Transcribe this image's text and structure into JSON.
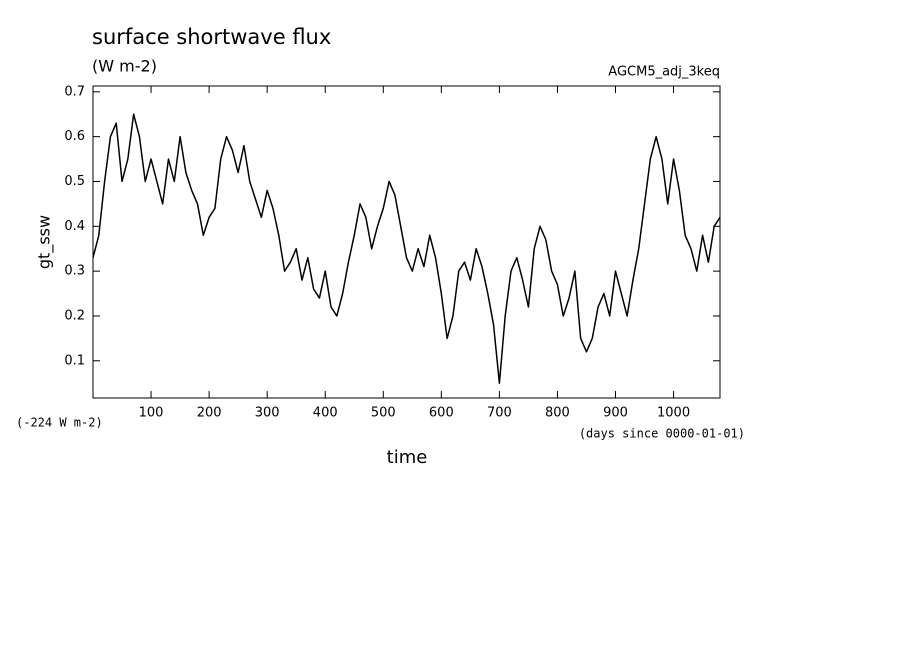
{
  "chart_data": {
    "type": "line",
    "title": "surface shortwave flux",
    "subtitle": "(W m-2)",
    "annotations": [
      "AGCM5_adj_3keq",
      "(-224 W m-2)",
      "(days since 0000-01-01)"
    ],
    "x_label": "time",
    "y_label": "gt_ssw",
    "color": "#000000",
    "x": [
      0,
      10,
      20,
      30,
      40,
      50,
      60,
      70,
      80,
      90,
      100,
      110,
      120,
      130,
      140,
      150,
      160,
      170,
      180,
      190,
      200,
      210,
      220,
      230,
      240,
      250,
      260,
      270,
      280,
      290,
      300,
      310,
      320,
      330,
      340,
      350,
      360,
      370,
      380,
      390,
      400,
      410,
      420,
      430,
      440,
      450,
      460,
      470,
      480,
      490,
      500,
      510,
      520,
      530,
      540,
      550,
      560,
      570,
      580,
      590,
      600,
      610,
      620,
      630,
      640,
      650,
      660,
      670,
      680,
      690,
      700,
      710,
      720,
      730,
      740,
      750,
      760,
      770,
      780,
      790,
      800,
      810,
      820,
      830,
      840,
      850,
      860,
      870,
      880,
      890,
      900,
      910,
      920,
      930,
      940,
      950,
      960,
      970,
      980,
      990,
      1000,
      1010,
      1020,
      1030,
      1040,
      1050,
      1060,
      1070,
      1080
    ],
    "values": [
      0.33,
      0.38,
      0.5,
      0.6,
      0.63,
      0.5,
      0.55,
      0.65,
      0.6,
      0.5,
      0.55,
      0.5,
      0.45,
      0.55,
      0.5,
      0.6,
      0.52,
      0.48,
      0.45,
      0.38,
      0.42,
      0.44,
      0.55,
      0.6,
      0.57,
      0.52,
      0.58,
      0.5,
      0.46,
      0.42,
      0.48,
      0.44,
      0.38,
      0.3,
      0.32,
      0.35,
      0.28,
      0.33,
      0.26,
      0.24,
      0.3,
      0.22,
      0.2,
      0.25,
      0.32,
      0.38,
      0.45,
      0.42,
      0.35,
      0.4,
      0.44,
      0.5,
      0.47,
      0.4,
      0.33,
      0.3,
      0.35,
      0.31,
      0.38,
      0.33,
      0.25,
      0.15,
      0.2,
      0.3,
      0.32,
      0.28,
      0.35,
      0.31,
      0.25,
      0.18,
      0.05,
      0.2,
      0.3,
      0.33,
      0.28,
      0.22,
      0.35,
      0.4,
      0.37,
      0.3,
      0.27,
      0.2,
      0.24,
      0.3,
      0.15,
      0.12,
      0.15,
      0.22,
      0.25,
      0.2,
      0.3,
      0.25,
      0.2,
      0.28,
      0.35,
      0.45,
      0.55,
      0.6,
      0.55,
      0.45,
      0.55,
      0.48,
      0.38,
      0.35,
      0.3,
      0.38,
      0.32,
      0.4,
      0.42
    ],
    "xlim": [
      0,
      1080
    ],
    "ylim": [
      0.017,
      0.713
    ],
    "xticks": [
      100,
      200,
      300,
      400,
      500,
      600,
      700,
      800,
      900,
      1000
    ],
    "yticks": [
      0.1,
      0.2,
      0.3,
      0.4,
      0.5,
      0.6,
      0.7
    ]
  }
}
